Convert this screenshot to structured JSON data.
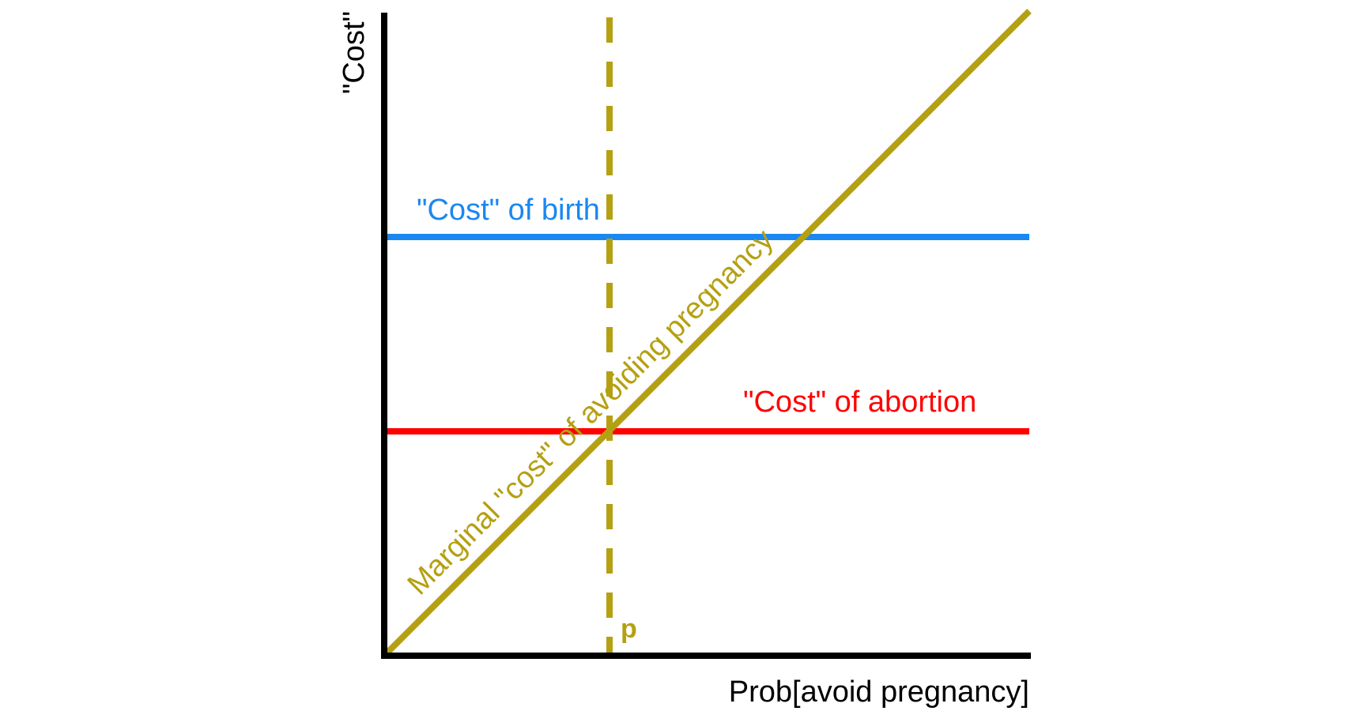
{
  "diagram": {
    "y_axis_label": "\"Cost\"",
    "x_axis_label": "Prob[avoid pregnancy]",
    "birth_label": "\"Cost\" of birth",
    "abortion_label": "\"Cost\" of abortion",
    "marginal_label": "Marginal \"cost\" of avoiding pregnancy",
    "p_label": "p"
  },
  "colors": {
    "axis": "#000000",
    "birth": "#1a88f0",
    "abortion": "#ff0000",
    "marginal": "#b5a012"
  }
}
